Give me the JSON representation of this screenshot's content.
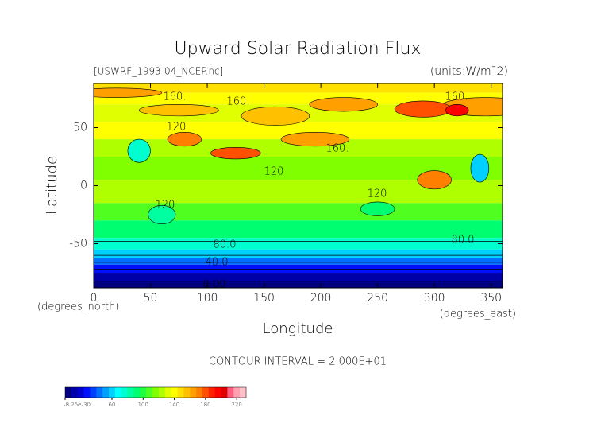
{
  "chart_data": {
    "type": "contour",
    "title": "Upward Solar Radiation Flux",
    "subtitle": "[USWRF_1993-04_NCEP.nc]",
    "units": "(units:W/m¯2)",
    "xlabel": "Longitude",
    "xunit": "(degrees_east)",
    "ylabel": "Latitude",
    "yunit": "(degrees_north)",
    "xlim": [
      0,
      360
    ],
    "xticks": [
      0,
      50,
      100,
      150,
      200,
      250,
      300,
      350
    ],
    "ylim": [
      -88,
      88
    ],
    "yticks": [
      -50,
      0,
      50
    ],
    "contour_interval": "CONTOUR INTERVAL = 2.000E+01",
    "contour_labels": [
      "160.",
      "160.",
      "160.",
      "160.",
      "120",
      "120",
      "120",
      "120",
      "80.0",
      "80.0",
      "40.0",
      "0.00"
    ],
    "colorbar": {
      "lim": [
        0,
        232
      ],
      "ticks": [
        -8.25e-30,
        60,
        100,
        140,
        180,
        220
      ],
      "colors": [
        "#000080",
        "#0000a8",
        "#0000d0",
        "#0010ff",
        "#0040ff",
        "#0070ff",
        "#00a0ff",
        "#00d0ff",
        "#00ffff",
        "#00ffd0",
        "#00ffa0",
        "#00ff70",
        "#20ff40",
        "#50ff20",
        "#80ff00",
        "#b0ff00",
        "#e0ff00",
        "#ffff00",
        "#ffe000",
        "#ffc000",
        "#ffa000",
        "#ff8000",
        "#ff5000",
        "#ff2000",
        "#ff0000",
        "#e00000",
        "#ff6080",
        "#ffa0b0",
        "#ffc0c8"
      ]
    }
  }
}
